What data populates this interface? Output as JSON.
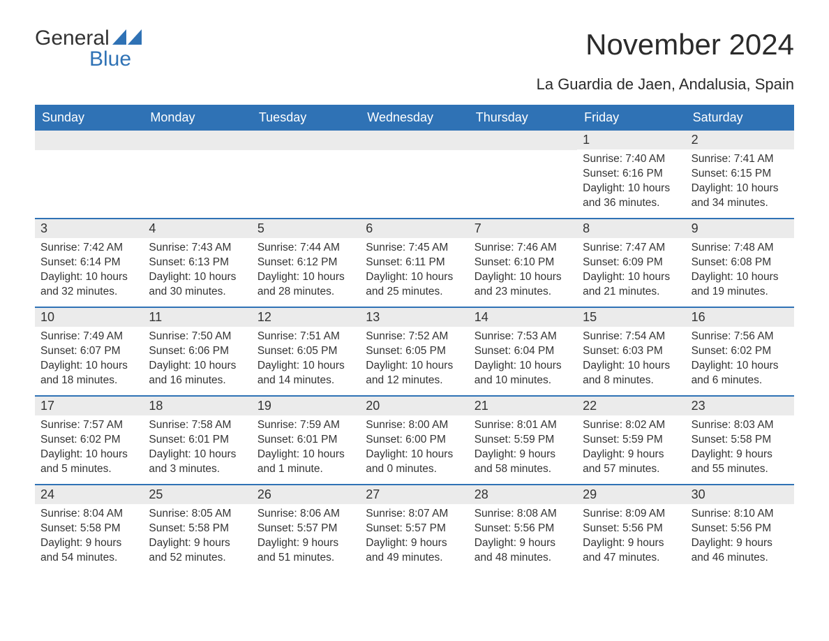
{
  "logo": {
    "text_top": "General",
    "text_bottom": "Blue",
    "icon_color": "#2f72b5"
  },
  "title": "November 2024",
  "subtitle": "La Guardia de Jaen, Andalusia, Spain",
  "colors": {
    "header_bg": "#2f72b5",
    "header_text": "#ffffff",
    "day_num_bg": "#ebebeb",
    "week_border": "#2f72b5",
    "body_text": "#333333",
    "page_bg": "#ffffff"
  },
  "fonts": {
    "title_size_pt": 32,
    "subtitle_size_pt": 17,
    "header_size_pt": 14,
    "body_size_pt": 12
  },
  "weekdays": [
    "Sunday",
    "Monday",
    "Tuesday",
    "Wednesday",
    "Thursday",
    "Friday",
    "Saturday"
  ],
  "weeks": [
    [
      {
        "empty": true
      },
      {
        "empty": true
      },
      {
        "empty": true
      },
      {
        "empty": true
      },
      {
        "empty": true
      },
      {
        "num": "1",
        "sunrise": "Sunrise: 7:40 AM",
        "sunset": "Sunset: 6:16 PM",
        "daylight": "Daylight: 10 hours and 36 minutes."
      },
      {
        "num": "2",
        "sunrise": "Sunrise: 7:41 AM",
        "sunset": "Sunset: 6:15 PM",
        "daylight": "Daylight: 10 hours and 34 minutes."
      }
    ],
    [
      {
        "num": "3",
        "sunrise": "Sunrise: 7:42 AM",
        "sunset": "Sunset: 6:14 PM",
        "daylight": "Daylight: 10 hours and 32 minutes."
      },
      {
        "num": "4",
        "sunrise": "Sunrise: 7:43 AM",
        "sunset": "Sunset: 6:13 PM",
        "daylight": "Daylight: 10 hours and 30 minutes."
      },
      {
        "num": "5",
        "sunrise": "Sunrise: 7:44 AM",
        "sunset": "Sunset: 6:12 PM",
        "daylight": "Daylight: 10 hours and 28 minutes."
      },
      {
        "num": "6",
        "sunrise": "Sunrise: 7:45 AM",
        "sunset": "Sunset: 6:11 PM",
        "daylight": "Daylight: 10 hours and 25 minutes."
      },
      {
        "num": "7",
        "sunrise": "Sunrise: 7:46 AM",
        "sunset": "Sunset: 6:10 PM",
        "daylight": "Daylight: 10 hours and 23 minutes."
      },
      {
        "num": "8",
        "sunrise": "Sunrise: 7:47 AM",
        "sunset": "Sunset: 6:09 PM",
        "daylight": "Daylight: 10 hours and 21 minutes."
      },
      {
        "num": "9",
        "sunrise": "Sunrise: 7:48 AM",
        "sunset": "Sunset: 6:08 PM",
        "daylight": "Daylight: 10 hours and 19 minutes."
      }
    ],
    [
      {
        "num": "10",
        "sunrise": "Sunrise: 7:49 AM",
        "sunset": "Sunset: 6:07 PM",
        "daylight": "Daylight: 10 hours and 18 minutes."
      },
      {
        "num": "11",
        "sunrise": "Sunrise: 7:50 AM",
        "sunset": "Sunset: 6:06 PM",
        "daylight": "Daylight: 10 hours and 16 minutes."
      },
      {
        "num": "12",
        "sunrise": "Sunrise: 7:51 AM",
        "sunset": "Sunset: 6:05 PM",
        "daylight": "Daylight: 10 hours and 14 minutes."
      },
      {
        "num": "13",
        "sunrise": "Sunrise: 7:52 AM",
        "sunset": "Sunset: 6:05 PM",
        "daylight": "Daylight: 10 hours and 12 minutes."
      },
      {
        "num": "14",
        "sunrise": "Sunrise: 7:53 AM",
        "sunset": "Sunset: 6:04 PM",
        "daylight": "Daylight: 10 hours and 10 minutes."
      },
      {
        "num": "15",
        "sunrise": "Sunrise: 7:54 AM",
        "sunset": "Sunset: 6:03 PM",
        "daylight": "Daylight: 10 hours and 8 minutes."
      },
      {
        "num": "16",
        "sunrise": "Sunrise: 7:56 AM",
        "sunset": "Sunset: 6:02 PM",
        "daylight": "Daylight: 10 hours and 6 minutes."
      }
    ],
    [
      {
        "num": "17",
        "sunrise": "Sunrise: 7:57 AM",
        "sunset": "Sunset: 6:02 PM",
        "daylight": "Daylight: 10 hours and 5 minutes."
      },
      {
        "num": "18",
        "sunrise": "Sunrise: 7:58 AM",
        "sunset": "Sunset: 6:01 PM",
        "daylight": "Daylight: 10 hours and 3 minutes."
      },
      {
        "num": "19",
        "sunrise": "Sunrise: 7:59 AM",
        "sunset": "Sunset: 6:01 PM",
        "daylight": "Daylight: 10 hours and 1 minute."
      },
      {
        "num": "20",
        "sunrise": "Sunrise: 8:00 AM",
        "sunset": "Sunset: 6:00 PM",
        "daylight": "Daylight: 10 hours and 0 minutes."
      },
      {
        "num": "21",
        "sunrise": "Sunrise: 8:01 AM",
        "sunset": "Sunset: 5:59 PM",
        "daylight": "Daylight: 9 hours and 58 minutes."
      },
      {
        "num": "22",
        "sunrise": "Sunrise: 8:02 AM",
        "sunset": "Sunset: 5:59 PM",
        "daylight": "Daylight: 9 hours and 57 minutes."
      },
      {
        "num": "23",
        "sunrise": "Sunrise: 8:03 AM",
        "sunset": "Sunset: 5:58 PM",
        "daylight": "Daylight: 9 hours and 55 minutes."
      }
    ],
    [
      {
        "num": "24",
        "sunrise": "Sunrise: 8:04 AM",
        "sunset": "Sunset: 5:58 PM",
        "daylight": "Daylight: 9 hours and 54 minutes."
      },
      {
        "num": "25",
        "sunrise": "Sunrise: 8:05 AM",
        "sunset": "Sunset: 5:58 PM",
        "daylight": "Daylight: 9 hours and 52 minutes."
      },
      {
        "num": "26",
        "sunrise": "Sunrise: 8:06 AM",
        "sunset": "Sunset: 5:57 PM",
        "daylight": "Daylight: 9 hours and 51 minutes."
      },
      {
        "num": "27",
        "sunrise": "Sunrise: 8:07 AM",
        "sunset": "Sunset: 5:57 PM",
        "daylight": "Daylight: 9 hours and 49 minutes."
      },
      {
        "num": "28",
        "sunrise": "Sunrise: 8:08 AM",
        "sunset": "Sunset: 5:56 PM",
        "daylight": "Daylight: 9 hours and 48 minutes."
      },
      {
        "num": "29",
        "sunrise": "Sunrise: 8:09 AM",
        "sunset": "Sunset: 5:56 PM",
        "daylight": "Daylight: 9 hours and 47 minutes."
      },
      {
        "num": "30",
        "sunrise": "Sunrise: 8:10 AM",
        "sunset": "Sunset: 5:56 PM",
        "daylight": "Daylight: 9 hours and 46 minutes."
      }
    ]
  ]
}
